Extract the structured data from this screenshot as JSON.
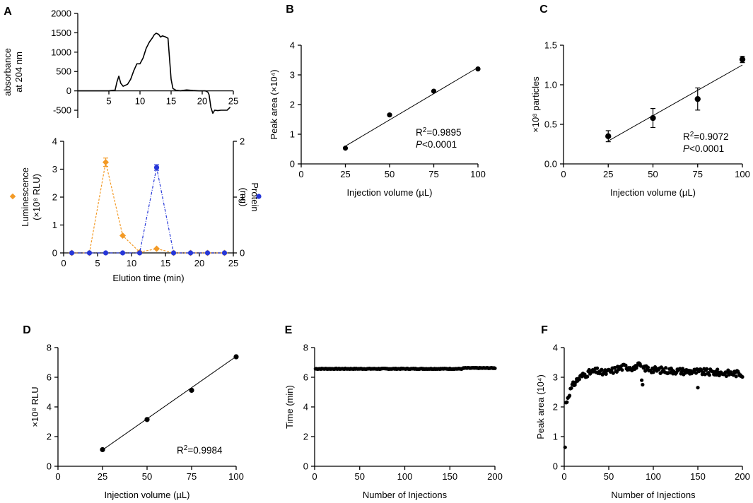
{
  "chart_data": [
    {
      "id": "A-top",
      "type": "line",
      "panel_label": "A",
      "ylabel_lines": [
        "absorbance",
        "at 204 nm"
      ],
      "xlim": [
        0,
        25
      ],
      "ylim": [
        -700,
        2000
      ],
      "xticks": [
        5,
        10,
        15,
        20,
        25
      ],
      "yticks": [
        -500,
        0,
        500,
        1000,
        1500,
        2000
      ],
      "series": [
        {
          "name": "absorbance",
          "x": [
            0,
            5,
            6.0,
            6.3,
            6.6,
            6.9,
            7.3,
            8,
            8.5,
            9,
            9.5,
            10,
            10.5,
            11,
            11.5,
            12,
            12.3,
            12.6,
            13,
            13.3,
            13.6,
            14,
            14.5,
            15,
            15.3,
            15.8,
            16.5,
            17.5,
            18.5,
            19.5,
            20.5,
            20.9,
            21.1,
            21.4,
            21.7,
            22,
            22.5,
            23,
            24,
            24.5
          ],
          "y": [
            0,
            0,
            20,
            230,
            380,
            200,
            120,
            170,
            300,
            520,
            700,
            700,
            850,
            1100,
            1260,
            1370,
            1450,
            1490,
            1460,
            1390,
            1420,
            1400,
            1360,
            300,
            60,
            15,
            5,
            25,
            10,
            0,
            0,
            -30,
            -100,
            -430,
            -580,
            -500,
            -510,
            -500,
            -500,
            -420
          ]
        }
      ]
    },
    {
      "id": "A-bottom",
      "type": "line",
      "xlabel": "Elution time (min)",
      "ylabel_lines": [
        "Luminescence",
        "(×10⁸ RLU)"
      ],
      "y2label_lines": [
        "Protein",
        "(mg)"
      ],
      "xlim": [
        0,
        25
      ],
      "ylim": [
        0,
        4
      ],
      "y2lim": [
        0,
        2
      ],
      "xticks": [
        0,
        5,
        10,
        15,
        20,
        25
      ],
      "yticks": [
        0,
        1,
        2,
        3,
        4
      ],
      "y2ticks": [
        0,
        1,
        2
      ],
      "series": [
        {
          "name": "Luminescence",
          "color": "#f39a26",
          "axis": "left",
          "x": [
            1.2,
            3.8,
            6.2,
            8.7,
            11.2,
            13.7,
            16.2,
            18.7,
            21.2,
            23.7
          ],
          "y": [
            0,
            0,
            3.25,
            0.62,
            0.03,
            0.15,
            0,
            0,
            0,
            0
          ],
          "err": [
            0,
            0,
            0.15,
            0,
            0,
            0,
            0,
            0,
            0,
            0
          ]
        },
        {
          "name": "Protein",
          "color": "#2637d8",
          "axis": "right",
          "x": [
            1.2,
            3.8,
            6.2,
            8.7,
            11.2,
            13.7,
            16.2,
            18.7,
            21.2,
            23.7
          ],
          "y": [
            0,
            0,
            0,
            0,
            0,
            1.53,
            0,
            0,
            0,
            0
          ],
          "err": [
            0,
            0,
            0,
            0,
            0,
            0.05,
            0,
            0,
            0,
            0
          ]
        }
      ]
    },
    {
      "id": "B",
      "type": "scatter",
      "panel_label": "B",
      "xlabel": "Injection volume (µL)",
      "ylabel": "Peak area (×10⁴)",
      "xlim": [
        0,
        100
      ],
      "ylim": [
        0,
        4
      ],
      "xticks": [
        0,
        25,
        50,
        75,
        100
      ],
      "yticks": [
        0,
        1,
        2,
        3,
        4
      ],
      "x": [
        25,
        50,
        75,
        100
      ],
      "y": [
        0.53,
        1.65,
        2.45,
        3.2
      ],
      "fit": [
        [
          25,
          0.6
        ],
        [
          100,
          3.25
        ]
      ],
      "r2_text": "R²=0.9895",
      "p_text": "P<0.0001"
    },
    {
      "id": "C",
      "type": "scatter",
      "panel_label": "C",
      "xlabel": "Injection volume (µL)",
      "ylabel": "×10⁸ particles",
      "xlim": [
        0,
        100
      ],
      "ylim": [
        0,
        1.5
      ],
      "xticks": [
        0,
        25,
        50,
        75,
        100
      ],
      "yticks": [
        "0.0",
        "0.5",
        "1.0",
        "1.5"
      ],
      "x": [
        25,
        50,
        75,
        100
      ],
      "y": [
        0.35,
        0.58,
        0.82,
        1.32
      ],
      "err": [
        0.07,
        0.12,
        0.14,
        0.04
      ],
      "fit": [
        [
          25,
          0.29
        ],
        [
          100,
          1.25
        ]
      ],
      "r2_text": "R²=0.9072",
      "p_text": "P<0.0001"
    },
    {
      "id": "D",
      "type": "scatter",
      "panel_label": "D",
      "xlabel": "Injection volume (µL)",
      "ylabel": "×10⁸ RLU",
      "xlim": [
        0,
        100
      ],
      "ylim": [
        0,
        8
      ],
      "xticks": [
        0,
        25,
        50,
        75,
        100
      ],
      "yticks": [
        0,
        2,
        4,
        6,
        8
      ],
      "x": [
        25,
        50,
        75,
        100
      ],
      "y": [
        1.12,
        3.15,
        5.12,
        7.38
      ],
      "fit": [
        [
          25,
          1.1
        ],
        [
          100,
          7.4
        ]
      ],
      "r2_text": "R²=0.9984"
    },
    {
      "id": "E",
      "type": "scatter",
      "panel_label": "E",
      "xlabel": "Number of Injections",
      "ylabel": "Time (min)",
      "xlim": [
        0,
        200
      ],
      "ylim": [
        0,
        8
      ],
      "xticks": [
        0,
        50,
        100,
        150,
        200
      ],
      "yticks": [
        0,
        2,
        4,
        6,
        8
      ],
      "series_rule": {
        "n": 200,
        "mean": 6.57,
        "late_mean": 6.62,
        "late_from": 165
      }
    },
    {
      "id": "F",
      "type": "scatter",
      "panel_label": "F",
      "xlabel": "Number of Injections",
      "ylabel": "Peak area (10⁴)",
      "xlim": [
        0,
        200
      ],
      "ylim": [
        0,
        4
      ],
      "xticks": [
        0,
        50,
        100,
        150,
        200
      ],
      "yticks": [
        0,
        1,
        2,
        3,
        4
      ],
      "series_rule": {
        "n": 200,
        "first_value": 0.65,
        "plateau": 3.25,
        "late_mean": 3.12
      }
    }
  ]
}
